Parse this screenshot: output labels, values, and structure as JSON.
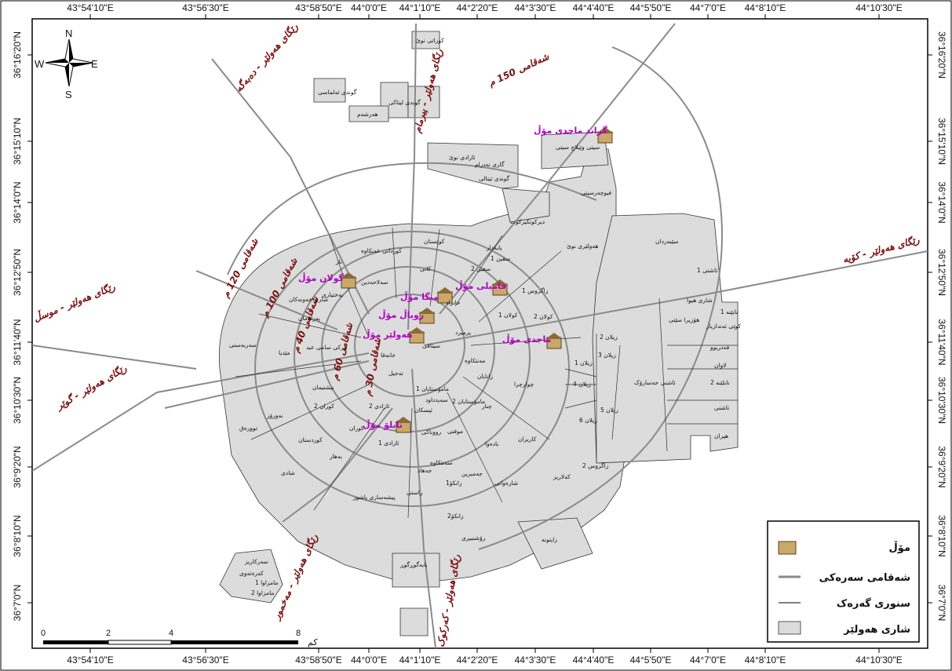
{
  "map": {
    "top_lon_labels": [
      "43°54'10\"E",
      "43°56'30\"E",
      "43°58'50\"E",
      "44°0'0\"E",
      "44°1'10\"E",
      "44°2'20\"E",
      "44°3'30\"E",
      "44°4'40\"E",
      "44°5'50\"E",
      "44°7'0\"E",
      "44°8'10\"E",
      "44°10'30\"E"
    ],
    "bottom_lon_labels": [
      "43°54'10\"E",
      "43°56'30\"E",
      "43°58'50\"E",
      "44°0'0\"E",
      "44°1'10\"E",
      "44°2'20\"E",
      "44°3'30\"E",
      "44°4'40\"E",
      "44°5'50\"E",
      "44°7'0\"E",
      "44°8'10\"E",
      "44°10'30\"E"
    ],
    "left_lat_labels": [
      "36°16'20\"N",
      "36°15'10\"N",
      "36°14'0\"N",
      "36°12'50\"N",
      "36°11'40\"N",
      "36°10'30\"N",
      "36°9'20\"N",
      "36°8'10\"N",
      "36°7'0\"N"
    ],
    "right_lat_labels": [
      "36°16'20\"N",
      "36°15'10\"N",
      "36°14'0\"N",
      "36°12'50\"N",
      "36°11'40\"N",
      "36°10'30\"N",
      "36°9'20\"N",
      "36°8'10\"N",
      "36°7'0\"N"
    ],
    "north_arrow": {
      "n": "N",
      "s": "S",
      "e": "E",
      "w": "W"
    },
    "roads": {
      "r1": "رێگای هەولێر - دەبەگە",
      "r2": "رێگای هەولێر - پیرمام",
      "r3": "رێگای هەولێر - موسڵ",
      "r4": "رێگای هەولێر - گوێر",
      "r5": "رێگای هەولێر - کۆیە",
      "r6": "رێگای هەولێر - مەخمور",
      "r7": "رێگای هەولێر - کەرکوک"
    },
    "ring_roads": {
      "s30": "شەقامی 30 م",
      "s40": "شەقامی 40 م",
      "s60": "شەقامی 60 م",
      "s100": "شەقامی 100 م",
      "s120": "شەقامی 120 م",
      "s150": "شەقامی 150 م"
    },
    "malls": [
      "گراند ماجدی مۆڵ",
      "گولان مۆڵ",
      "فامیلی مۆڵ",
      "میگا مۆڵ",
      "رویاڵ مۆڵ",
      "هەولێر مۆڵ",
      "ماجدی مۆڵ",
      "تابلۆ مۆڵ"
    ],
    "neighbourhoods": {
      "n1": "کوێستان",
      "n2": "کوردانی عەنکاوە",
      "n3": "ناز",
      "n4": "کانی",
      "n5": "سەلاحەدین",
      "n6": "بەختیاری",
      "n7": "شاری خەونەکان",
      "n8": "پەرلەمان",
      "n9": "سەربەستی",
      "n10": "بیرکی سامی عبد",
      "n11": "مێدیا",
      "n12": "نیشتیمان",
      "n13": "نەورۆز",
      "n14": "توورەق",
      "n15": "کوردستان",
      "n16": "کوران 2",
      "n17": "بەهار",
      "n18": "شادی",
      "n19": "پیشەسازی باشور",
      "n20": "راستی",
      "n21": "زانکۆ2",
      "n22": "زانکۆ1",
      "n23": "جەهاد",
      "n24": "رۆشنبیری",
      "n25": "بابەگوڕگوڕ",
      "n26": "زایتونە",
      "n27": "کەلاریز",
      "n28": "شارەوانی",
      "n29": "جەمبرین",
      "n30": "سەنتکاوە",
      "n31": "ئازادی 1",
      "n32": "رووناکی",
      "n33": "موفتی",
      "n34": "چنار",
      "n35": "بادەوا",
      "n36": "کاریزان",
      "n37": "چوارچرا",
      "n38": "کولان 2",
      "n39": "کولان 1",
      "n40": "زیلان 1",
      "n41": "زیلان 2",
      "n42": "زیلان 3",
      "n43": "زیلان 4",
      "n44": "زیلان 5",
      "n45": "زیلان 6",
      "n46": "ئاشتی حەسارۆک",
      "n47": "قەدربوو",
      "n48": "لاوان",
      "n49": "نابلێنە 2",
      "n50": "ئاشتی",
      "n51": "هیران",
      "n52": "هەولێری نوێ",
      "n53": "سێبەردان",
      "n54": "فیوچەرسیتی",
      "n55": "ئازادی نوێ",
      "n56": "گوندی ئیتالی",
      "n57": "گاری نەدرام",
      "n58": "ئازادی نوێ",
      "n59": "کوراتی نوێ",
      "n60": "گوندی لیتاکی",
      "n61": "گوندی ئەلماسی",
      "n62": "هەرشەم",
      "n63": "سەرکاریز",
      "n64": "کەرەتەوی",
      "n65": "مامزاوا 1",
      "n66": "مامزاوا 2",
      "n67": "زاخۆ",
      "n68": "بێمەوی",
      "n69": "پایەدار",
      "n70": "سفین 1",
      "n71": "سفین 2",
      "n72": "زاگروس 1",
      "n73": "زاگروس 2",
      "n74": "خانزاد",
      "n75": "پرمیرد",
      "n76": "سیتاقی",
      "n77": "مەنتکاوە",
      "n78": "تەیراوە",
      "n79": "خانەقا",
      "n80": "ئیسکان",
      "n81": "کوماری",
      "n82": "ئازادی 2",
      "n83": "تەجیل",
      "n84": "مامۆستایان 1",
      "n85": "مامۆستایان 2",
      "n86": "کوران",
      "n87": "نیشتیمانی",
      "n88": "زانایان",
      "n89": "بەعەدی",
      "n90": "عەنکاوە",
      "n91": "سەیدداود",
      "n92": "ئاشتی 1",
      "n93": "ئاشتی 2",
      "n94": "شاری هیوا",
      "n95": "شاری ئەندازیاران",
      "n96": "ئەندازیاران",
      "n97": "هۆزیرا سێتی",
      "n98": "کوێی ئەندازیار",
      "n99": "نابێنە 1",
      "n100": "شاری کەلار",
      "n101": "سیتی وێیلاج سیتی",
      "n102": "گوندی لیتانی",
      "n103": "دیرکوتکیرکوت",
      "n104": "کوران 3"
    },
    "legend": {
      "mall": "مۆڵ",
      "main_road": "شەقامی سەرەکی",
      "district_border": "سنوری گەرەک",
      "city": "شاری هەولێر"
    },
    "scale": {
      "ticks": [
        "0",
        "2",
        "4",
        "8"
      ],
      "unit": "کم"
    },
    "colors": {
      "land": "#dcdcdc",
      "road": "#8a8a8a",
      "border": "#222222",
      "road_label": "#7a1010",
      "mall_label": "#b000c0",
      "background": "#ffffff"
    }
  }
}
